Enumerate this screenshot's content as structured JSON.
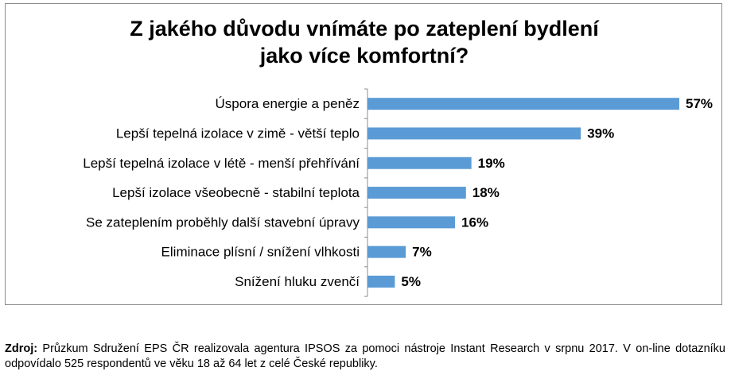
{
  "chart_data": {
    "type": "bar",
    "orientation": "horizontal",
    "title": "Z jakého důvodu vnímáte po zateplení bydlení\njako více komfortní?",
    "categories": [
      "Úspora energie a peněz",
      "Lepší tepelná izolace v zimě - větší teplo",
      "Lepší tepelná izolace v létě - menší přehřívání",
      "Lepší izolace všeobecně - stabilní teplota",
      "Se zateplením proběhly další stavební úpravy",
      "Eliminace plísní / snížení vlhkosti",
      "Snížení hluku zvenčí"
    ],
    "values": [
      57,
      39,
      19,
      18,
      16,
      7,
      5
    ],
    "value_labels": [
      "57%",
      "39%",
      "19%",
      "18%",
      "16%",
      "7%",
      "5%"
    ],
    "unit": "%",
    "bar_color": "#5b9bd5",
    "grid": false,
    "legend": "none"
  },
  "source": {
    "label": "Zdroj:",
    "text": " Průzkum Sdružení EPS ČR realizovala agentura IPSOS za pomoci nástroje Instant Research v srpnu 2017. V on-line dotazníku odpovídalo 525 respondentů ve věku 18 až 64 let z celé České republiky."
  }
}
